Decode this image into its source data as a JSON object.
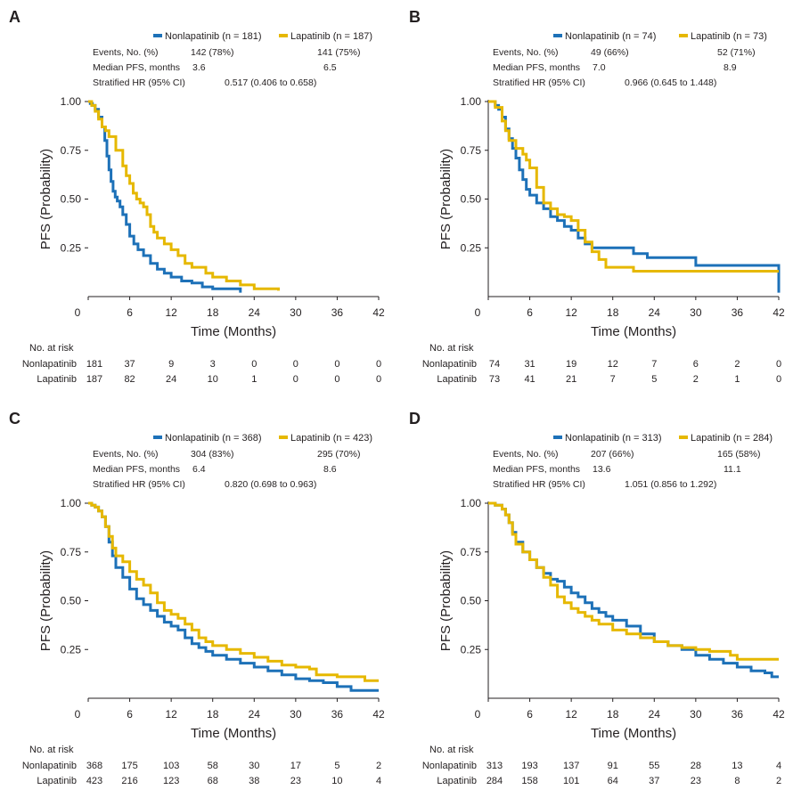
{
  "colors": {
    "nonlapatinib": "#1d71b8",
    "lapatinib": "#e6b800"
  },
  "labels": {
    "events": "Events, No. (%)",
    "median": "Median PFS, months",
    "hr": "Stratified HR (95% CI)",
    "at_risk": "No. at risk",
    "arm_non": "Nonlapatinib",
    "arm_lap": "Lapatinib"
  },
  "chart_data": [
    {
      "type": "line",
      "panel": "A",
      "xlabel": "Time (Months)",
      "ylabel": "PFS (Probability)",
      "xlim": [
        0,
        42
      ],
      "ylim": [
        0,
        1
      ],
      "xticks": [
        0,
        6,
        12,
        18,
        24,
        30,
        36,
        42
      ],
      "yticks": [
        0.25,
        0.5,
        0.75,
        1.0
      ],
      "ytick_labels": [
        "0.25",
        "0.50",
        "0.75",
        "1.00"
      ],
      "legend": {
        "non": "Nonlapatinib (n = 181)",
        "lap": "Lapatinib (n = 187)"
      },
      "events": {
        "non": "142 (78%)",
        "lap": "141 (75%)"
      },
      "median": {
        "non": "3.6",
        "lap": "6.5"
      },
      "hr": "0.517 (0.406 to 0.658)",
      "at_risk": {
        "non": [
          181,
          37,
          9,
          3,
          0,
          0,
          0,
          0
        ],
        "lap": [
          187,
          82,
          24,
          10,
          1,
          0,
          0,
          0
        ]
      },
      "series": [
        {
          "name": "Nonlapatinib",
          "color": "#1d71b8",
          "x": [
            0,
            0.3,
            0.6,
            1.0,
            1.5,
            2.0,
            2.4,
            2.7,
            3.0,
            3.3,
            3.6,
            3.9,
            4.2,
            4.6,
            5.0,
            5.5,
            6.0,
            6.6,
            7.2,
            8.0,
            9.0,
            10.0,
            11.0,
            12.0,
            13.5,
            15.0,
            16.5,
            18.0,
            22.0
          ],
          "y": [
            1.0,
            0.99,
            0.98,
            0.96,
            0.92,
            0.87,
            0.8,
            0.72,
            0.65,
            0.59,
            0.54,
            0.51,
            0.49,
            0.46,
            0.42,
            0.37,
            0.31,
            0.27,
            0.24,
            0.21,
            0.17,
            0.14,
            0.12,
            0.1,
            0.08,
            0.07,
            0.05,
            0.04,
            0.02
          ]
        },
        {
          "name": "Lapatinib",
          "color": "#e6b800",
          "x": [
            0,
            0.5,
            1.0,
            1.5,
            2.0,
            2.5,
            3.0,
            4.0,
            5.0,
            5.5,
            6.0,
            6.5,
            7.0,
            7.5,
            8.0,
            8.5,
            9.0,
            9.5,
            10.0,
            11.0,
            12.0,
            13.0,
            14.0,
            15.0,
            17.0,
            18.0,
            20.0,
            22.0,
            24.0,
            27.5
          ],
          "y": [
            1.0,
            0.98,
            0.95,
            0.91,
            0.87,
            0.85,
            0.82,
            0.75,
            0.67,
            0.62,
            0.58,
            0.53,
            0.5,
            0.48,
            0.46,
            0.42,
            0.36,
            0.33,
            0.3,
            0.27,
            0.24,
            0.21,
            0.17,
            0.15,
            0.12,
            0.1,
            0.08,
            0.06,
            0.04,
            0.03
          ]
        }
      ]
    },
    {
      "type": "line",
      "panel": "B",
      "xlabel": "Time (Months)",
      "ylabel": "PFS (Probability)",
      "xlim": [
        0,
        42
      ],
      "ylim": [
        0,
        1
      ],
      "xticks": [
        0,
        6,
        12,
        18,
        24,
        30,
        36,
        42
      ],
      "yticks": [
        0.25,
        0.5,
        0.75,
        1.0
      ],
      "ytick_labels": [
        "0.25",
        "0.50",
        "0.75",
        "1.00"
      ],
      "legend": {
        "non": "Nonlapatinib (n = 74)",
        "lap": "Lapatinib (n = 73)"
      },
      "events": {
        "non": "49 (66%)",
        "lap": "52 (71%)"
      },
      "median": {
        "non": "7.0",
        "lap": "8.9"
      },
      "hr": "0.966 (0.645 to 1.448)",
      "at_risk": {
        "non": [
          74,
          31,
          19,
          12,
          7,
          6,
          2,
          0
        ],
        "lap": [
          73,
          41,
          21,
          7,
          5,
          2,
          1,
          0
        ]
      },
      "series": [
        {
          "name": "Nonlapatinib",
          "color": "#1d71b8",
          "x": [
            0,
            1.0,
            1.5,
            2.0,
            2.5,
            3.0,
            3.5,
            4.0,
            4.5,
            5.0,
            5.5,
            6.0,
            7.0,
            8.0,
            9.0,
            10.0,
            11.0,
            12.0,
            13.0,
            14.0,
            15.0,
            17.0,
            21.0,
            23.0,
            30.0,
            41.5,
            42.0
          ],
          "y": [
            1.0,
            0.98,
            0.96,
            0.92,
            0.86,
            0.81,
            0.76,
            0.71,
            0.65,
            0.6,
            0.55,
            0.52,
            0.48,
            0.45,
            0.41,
            0.39,
            0.36,
            0.34,
            0.3,
            0.27,
            0.25,
            0.25,
            0.22,
            0.2,
            0.16,
            0.16,
            0.02
          ]
        },
        {
          "name": "Lapatinib",
          "color": "#e6b800",
          "x": [
            0,
            1.0,
            2.0,
            2.5,
            3.0,
            4.0,
            5.0,
            5.5,
            6.0,
            7.0,
            8.0,
            9.0,
            10.0,
            11.0,
            12.0,
            13.0,
            14.0,
            15.0,
            16.0,
            17.0,
            21.0,
            42.0
          ],
          "y": [
            1.0,
            0.97,
            0.9,
            0.85,
            0.8,
            0.76,
            0.73,
            0.7,
            0.66,
            0.56,
            0.48,
            0.45,
            0.42,
            0.41,
            0.39,
            0.34,
            0.28,
            0.23,
            0.19,
            0.15,
            0.13,
            0.13
          ]
        }
      ]
    },
    {
      "type": "line",
      "panel": "C",
      "xlabel": "Time (Months)",
      "ylabel": "PFS (Probability)",
      "xlim": [
        0,
        42
      ],
      "ylim": [
        0,
        1
      ],
      "xticks": [
        0,
        6,
        12,
        18,
        24,
        30,
        36,
        42
      ],
      "yticks": [
        0.25,
        0.5,
        0.75,
        1.0
      ],
      "ytick_labels": [
        "0.25",
        "0.50",
        "0.75",
        "1.00"
      ],
      "legend": {
        "non": "Nonlapatinib (n = 368)",
        "lap": "Lapatinib (n = 423)"
      },
      "events": {
        "non": "304 (83%)",
        "lap": "295 (70%)"
      },
      "median": {
        "non": "6.4",
        "lap": "8.6"
      },
      "hr": "0.820 (0.698 to 0.963)",
      "at_risk": {
        "non": [
          368,
          175,
          103,
          58,
          30,
          17,
          5,
          2
        ],
        "lap": [
          423,
          216,
          123,
          68,
          38,
          23,
          10,
          4
        ]
      },
      "series": [
        {
          "name": "Nonlapatinib",
          "color": "#1d71b8",
          "x": [
            0,
            0.5,
            1.0,
            1.5,
            2.0,
            2.5,
            3.0,
            3.5,
            4.0,
            5.0,
            6.0,
            7.0,
            8.0,
            9.0,
            10.0,
            11.0,
            12.0,
            13.0,
            14.0,
            15.0,
            16.0,
            17.0,
            18.0,
            20.0,
            22.0,
            24.0,
            26.0,
            28.0,
            30.0,
            32.0,
            34.0,
            36.0,
            38.0,
            42.0
          ],
          "y": [
            1.0,
            0.99,
            0.98,
            0.96,
            0.93,
            0.88,
            0.8,
            0.73,
            0.67,
            0.62,
            0.56,
            0.51,
            0.48,
            0.45,
            0.42,
            0.39,
            0.37,
            0.35,
            0.31,
            0.28,
            0.26,
            0.24,
            0.22,
            0.2,
            0.18,
            0.16,
            0.14,
            0.12,
            0.1,
            0.09,
            0.08,
            0.06,
            0.04,
            0.04
          ]
        },
        {
          "name": "Lapatinib",
          "color": "#e6b800",
          "x": [
            0,
            0.5,
            1.0,
            1.5,
            2.0,
            2.5,
            3.0,
            3.5,
            4.0,
            5.0,
            6.0,
            7.0,
            8.0,
            9.0,
            10.0,
            11.0,
            12.0,
            13.0,
            14.0,
            15.0,
            16.0,
            17.0,
            18.0,
            20.0,
            22.0,
            24.0,
            26.0,
            28.0,
            30.0,
            32.0,
            33.0,
            36.0,
            40.0,
            42.0
          ],
          "y": [
            1.0,
            0.99,
            0.98,
            0.96,
            0.93,
            0.88,
            0.83,
            0.77,
            0.73,
            0.7,
            0.65,
            0.61,
            0.58,
            0.54,
            0.49,
            0.45,
            0.43,
            0.41,
            0.38,
            0.35,
            0.31,
            0.29,
            0.27,
            0.25,
            0.23,
            0.21,
            0.19,
            0.17,
            0.16,
            0.15,
            0.12,
            0.11,
            0.09,
            0.09
          ]
        }
      ]
    },
    {
      "type": "line",
      "panel": "D",
      "xlabel": "Time (Months)",
      "ylabel": "PFS (Probability)",
      "xlim": [
        0,
        42
      ],
      "ylim": [
        0,
        1
      ],
      "xticks": [
        0,
        6,
        12,
        18,
        24,
        30,
        36,
        42
      ],
      "yticks": [
        0.25,
        0.5,
        0.75,
        1.0
      ],
      "ytick_labels": [
        "0.25",
        "0.50",
        "0.75",
        "1.00"
      ],
      "legend": {
        "non": "Nonlapatinib (n = 313)",
        "lap": "Lapatinib (n = 284)"
      },
      "events": {
        "non": "207 (66%)",
        "lap": "165 (58%)"
      },
      "median": {
        "non": "13.6",
        "lap": "11.1"
      },
      "hr": "1.051 (0.856 to 1.292)",
      "at_risk": {
        "non": [
          313,
          193,
          137,
          91,
          55,
          28,
          13,
          4
        ],
        "lap": [
          284,
          158,
          101,
          64,
          37,
          23,
          8,
          2
        ]
      },
      "series": [
        {
          "name": "Nonlapatinib",
          "color": "#1d71b8",
          "x": [
            0,
            1.0,
            2.0,
            2.5,
            3.0,
            3.5,
            4.0,
            5.0,
            6.0,
            7.0,
            8.0,
            9.0,
            10.0,
            11.0,
            12.0,
            13.0,
            14.0,
            15.0,
            16.0,
            17.0,
            18.0,
            20.0,
            22.0,
            24.0,
            26.0,
            28.0,
            30.0,
            32.0,
            34.0,
            36.0,
            38.0,
            40.0,
            41.0,
            42.0
          ],
          "y": [
            1.0,
            0.99,
            0.97,
            0.94,
            0.9,
            0.85,
            0.8,
            0.75,
            0.71,
            0.67,
            0.64,
            0.61,
            0.6,
            0.57,
            0.54,
            0.52,
            0.49,
            0.46,
            0.44,
            0.42,
            0.4,
            0.37,
            0.33,
            0.29,
            0.27,
            0.25,
            0.22,
            0.2,
            0.18,
            0.16,
            0.14,
            0.13,
            0.11,
            0.11
          ]
        },
        {
          "name": "Lapatinib",
          "color": "#e6b800",
          "x": [
            0,
            1.0,
            2.0,
            2.5,
            3.0,
            3.5,
            4.0,
            5.0,
            6.0,
            7.0,
            8.0,
            9.0,
            10.0,
            11.0,
            12.0,
            13.0,
            14.0,
            15.0,
            16.0,
            18.0,
            20.0,
            22.0,
            24.0,
            26.0,
            28.0,
            30.0,
            32.0,
            35.0,
            36.0,
            38.0,
            42.0
          ],
          "y": [
            1.0,
            0.99,
            0.97,
            0.94,
            0.9,
            0.84,
            0.79,
            0.75,
            0.71,
            0.67,
            0.62,
            0.58,
            0.52,
            0.49,
            0.46,
            0.44,
            0.42,
            0.4,
            0.38,
            0.35,
            0.33,
            0.31,
            0.29,
            0.27,
            0.26,
            0.25,
            0.24,
            0.22,
            0.2,
            0.2,
            0.2
          ]
        }
      ]
    }
  ]
}
